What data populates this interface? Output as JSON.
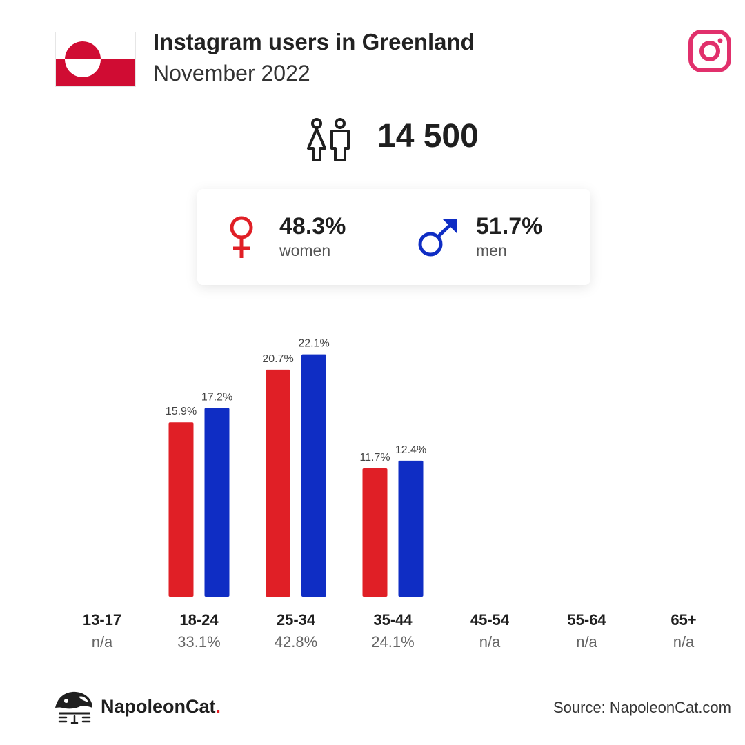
{
  "header": {
    "title": "Instagram users in Greenland",
    "subtitle": "November 2022",
    "flag_icon": "greenland-flag-icon",
    "platform_icon": "instagram-icon"
  },
  "summary": {
    "total": "14 500",
    "women": {
      "pct": "48.3%",
      "label": "women"
    },
    "men": {
      "pct": "51.7%",
      "label": "men"
    }
  },
  "colors": {
    "women": "#e01f26",
    "men": "#0f2dc4",
    "instagram": "#e1306c",
    "flag_red": "#d00c33"
  },
  "chart_data": {
    "type": "bar",
    "categories": [
      "13-17",
      "18-24",
      "25-34",
      "35-44",
      "45-54",
      "55-64",
      "65+"
    ],
    "category_totals": [
      "n/a",
      "33.1%",
      "42.8%",
      "24.1%",
      "n/a",
      "n/a",
      "n/a"
    ],
    "series": [
      {
        "values": [
          null,
          15.9,
          20.7,
          11.7,
          null,
          null,
          null
        ],
        "labels": [
          "",
          "15.9%",
          "20.7%",
          "11.7%",
          "",
          "",
          ""
        ]
      },
      {
        "values": [
          null,
          17.2,
          22.1,
          12.4,
          null,
          null,
          null
        ],
        "labels": [
          "",
          "17.2%",
          "22.1%",
          "12.4%",
          "",
          "",
          ""
        ]
      }
    ],
    "ylim": [
      0,
      25
    ]
  },
  "footer": {
    "brand": "NapoleonCat",
    "brand_dot": ".",
    "source": "Source: NapoleonCat.com"
  }
}
